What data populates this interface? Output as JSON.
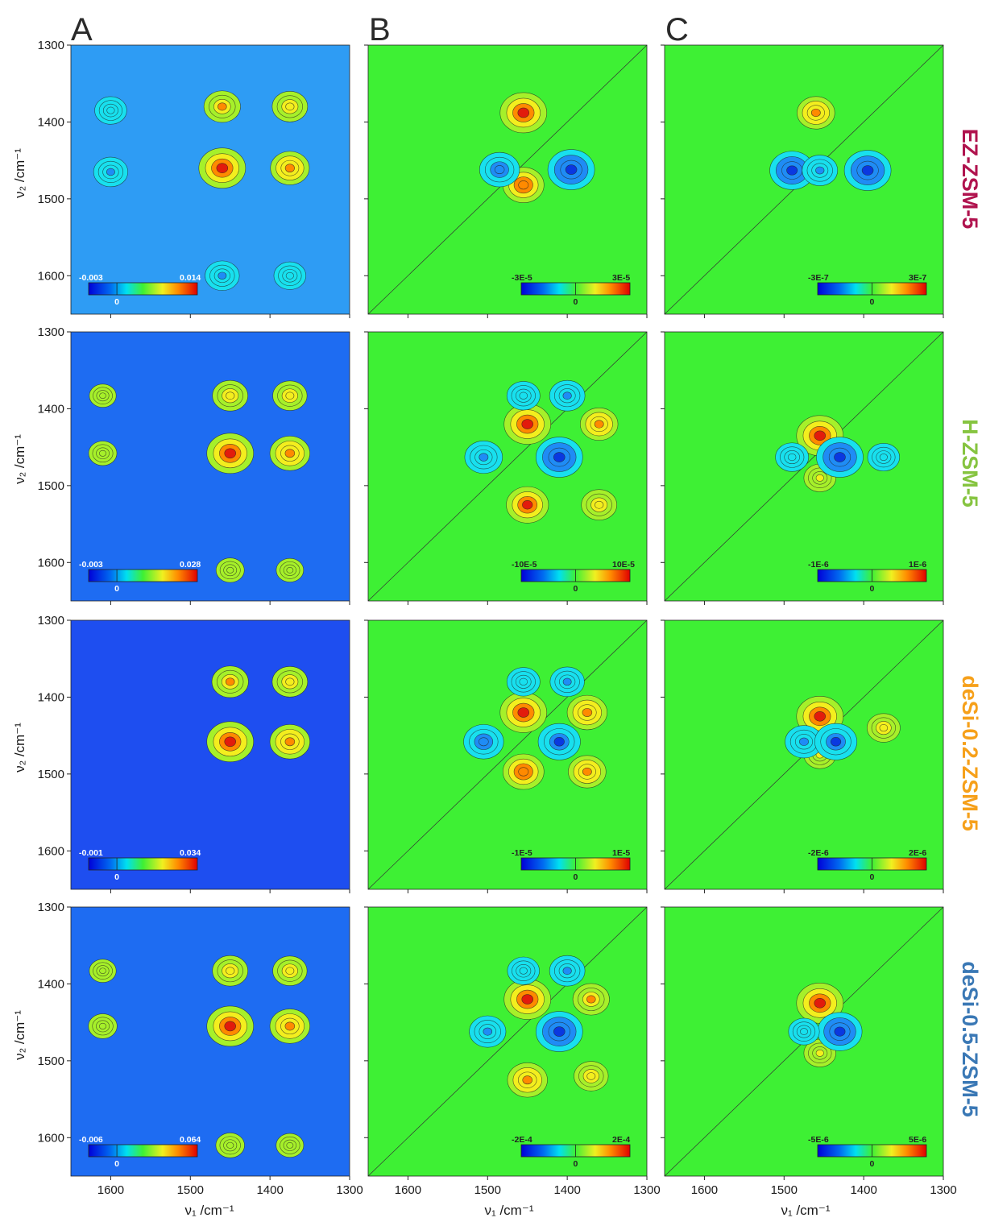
{
  "figure": {
    "column_letters": [
      "A",
      "B",
      "C"
    ],
    "x_axis_label": "ν₁ /cm⁻¹",
    "y_axis_label": "ν₂ /cm⁻¹",
    "axis_ticks": [
      "1600",
      "1500",
      "1400",
      "1300"
    ],
    "y_axis_ticks": [
      "1300",
      "1400",
      "1500",
      "1600"
    ]
  },
  "colors": {
    "EZ-ZSM-5": "#b0134e",
    "H-ZSM-5": "#86c440",
    "deSi-0.2-ZSM-5": "#f6a01a",
    "deSi-0.5-ZSM-5": "#3a78b5"
  },
  "chart_data": [
    {
      "type": "heatmap",
      "row": "EZ-ZSM-5",
      "column": "A",
      "colorbar": [
        "-0.003",
        "0",
        "0.014"
      ],
      "xlim": [
        1650,
        1300
      ],
      "ylim": [
        1300,
        1650
      ],
      "background": "#2e9cf4",
      "peaks": [
        [
          1460,
          1380,
          0.55
        ],
        [
          1460,
          1460,
          1.0
        ],
        [
          1375,
          1380,
          0.5
        ],
        [
          1375,
          1460,
          0.65
        ],
        [
          1600,
          1385,
          -0.35
        ],
        [
          1600,
          1465,
          -0.45
        ],
        [
          1460,
          1600,
          -0.45
        ],
        [
          1375,
          1600,
          -0.35
        ]
      ]
    },
    {
      "type": "heatmap",
      "row": "EZ-ZSM-5",
      "column": "B",
      "colorbar": [
        "-3E-5",
        "0",
        "3E-5"
      ],
      "xlim": [
        1650,
        1300
      ],
      "ylim": [
        1300,
        1650
      ],
      "background": "#3ef034",
      "peaks": [
        [
          1455,
          1388,
          1.0
        ],
        [
          1455,
          1482,
          0.75
        ],
        [
          1485,
          1462,
          -0.7
        ],
        [
          1395,
          1462,
          -1.0
        ]
      ]
    },
    {
      "type": "heatmap",
      "row": "EZ-ZSM-5",
      "column": "C",
      "colorbar": [
        "-3E-7",
        "0",
        "3E-7"
      ],
      "xlim": [
        1650,
        1300
      ],
      "ylim": [
        1300,
        1650
      ],
      "background": "#3ef034",
      "peaks": [
        [
          1460,
          1388,
          0.6
        ],
        [
          1490,
          1463,
          -0.9
        ],
        [
          1395,
          1463,
          -1.0
        ],
        [
          1455,
          1463,
          -0.5
        ]
      ]
    },
    {
      "type": "heatmap",
      "row": "H-ZSM-5",
      "column": "A",
      "colorbar": [
        "-0.003",
        "0",
        "0.028"
      ],
      "xlim": [
        1650,
        1300
      ],
      "ylim": [
        1300,
        1650
      ],
      "background": "#1e6cf2",
      "peaks": [
        [
          1450,
          1383,
          0.5
        ],
        [
          1450,
          1458,
          1.0
        ],
        [
          1375,
          1383,
          0.45
        ],
        [
          1375,
          1458,
          0.7
        ],
        [
          1610,
          1383,
          0.12
        ],
        [
          1610,
          1458,
          0.18
        ],
        [
          1450,
          1610,
          0.18
        ],
        [
          1375,
          1610,
          0.14
        ]
      ]
    },
    {
      "type": "heatmap",
      "row": "H-ZSM-5",
      "column": "B",
      "colorbar": [
        "-10E-5",
        "0",
        "10E-5"
      ],
      "xlim": [
        1650,
        1300
      ],
      "ylim": [
        1300,
        1650
      ],
      "background": "#3ef034",
      "peaks": [
        [
          1450,
          1420,
          1.0
        ],
        [
          1450,
          1525,
          0.8
        ],
        [
          1360,
          1420,
          0.6
        ],
        [
          1360,
          1525,
          0.5
        ],
        [
          1505,
          1463,
          -0.6
        ],
        [
          1410,
          1463,
          -1.0
        ],
        [
          1455,
          1383,
          -0.4
        ],
        [
          1400,
          1383,
          -0.5
        ]
      ]
    },
    {
      "type": "heatmap",
      "row": "H-ZSM-5",
      "column": "C",
      "colorbar": [
        "-1E-6",
        "0",
        "1E-6"
      ],
      "xlim": [
        1650,
        1300
      ],
      "ylim": [
        1300,
        1650
      ],
      "background": "#3ef034",
      "peaks": [
        [
          1455,
          1435,
          1.0
        ],
        [
          1455,
          1490,
          0.35
        ],
        [
          1430,
          1463,
          -1.0
        ],
        [
          1490,
          1463,
          -0.4
        ],
        [
          1375,
          1463,
          -0.35
        ]
      ]
    },
    {
      "type": "heatmap",
      "row": "deSi-0.2-ZSM-5",
      "column": "A",
      "colorbar": [
        "-0.001",
        "0",
        "0.034"
      ],
      "xlim": [
        1650,
        1300
      ],
      "ylim": [
        1300,
        1650
      ],
      "background": "#1e4ef0",
      "peaks": [
        [
          1450,
          1380,
          0.55
        ],
        [
          1450,
          1458,
          1.0
        ],
        [
          1375,
          1380,
          0.5
        ],
        [
          1375,
          1458,
          0.7
        ]
      ]
    },
    {
      "type": "heatmap",
      "row": "deSi-0.2-ZSM-5",
      "column": "B",
      "colorbar": [
        "-1E-5",
        "0",
        "1E-5"
      ],
      "xlim": [
        1650,
        1300
      ],
      "ylim": [
        1300,
        1650
      ],
      "background": "#3ef034",
      "peaks": [
        [
          1455,
          1420,
          1.0
        ],
        [
          1455,
          1497,
          0.75
        ],
        [
          1375,
          1420,
          0.7
        ],
        [
          1375,
          1497,
          0.6
        ],
        [
          1505,
          1458,
          -0.7
        ],
        [
          1410,
          1458,
          -0.8
        ],
        [
          1455,
          1380,
          -0.4
        ],
        [
          1400,
          1380,
          -0.45
        ]
      ]
    },
    {
      "type": "heatmap",
      "row": "deSi-0.2-ZSM-5",
      "column": "C",
      "colorbar": [
        "-2E-6",
        "0",
        "2E-6"
      ],
      "xlim": [
        1650,
        1300
      ],
      "ylim": [
        1300,
        1650
      ],
      "background": "#3ef034",
      "peaks": [
        [
          1455,
          1425,
          1.0
        ],
        [
          1375,
          1440,
          0.4
        ],
        [
          1455,
          1475,
          0.35
        ],
        [
          1475,
          1458,
          -0.6
        ],
        [
          1435,
          1458,
          -0.8
        ]
      ]
    },
    {
      "type": "heatmap",
      "row": "deSi-0.5-ZSM-5",
      "column": "A",
      "colorbar": [
        "-0.006",
        "0",
        "0.064"
      ],
      "xlim": [
        1650,
        1300
      ],
      "ylim": [
        1300,
        1650
      ],
      "background": "#1e6cf2",
      "peaks": [
        [
          1450,
          1383,
          0.5
        ],
        [
          1450,
          1455,
          1.0
        ],
        [
          1375,
          1383,
          0.45
        ],
        [
          1375,
          1455,
          0.7
        ],
        [
          1610,
          1383,
          0.12
        ],
        [
          1610,
          1455,
          0.2
        ],
        [
          1450,
          1610,
          0.2
        ],
        [
          1375,
          1610,
          0.15
        ]
      ]
    },
    {
      "type": "heatmap",
      "row": "deSi-0.5-ZSM-5",
      "column": "B",
      "colorbar": [
        "-2E-4",
        "0",
        "2E-4"
      ],
      "xlim": [
        1650,
        1300
      ],
      "ylim": [
        1300,
        1650
      ],
      "background": "#3ef034",
      "peaks": [
        [
          1450,
          1420,
          1.0
        ],
        [
          1450,
          1525,
          0.7
        ],
        [
          1370,
          1420,
          0.55
        ],
        [
          1370,
          1520,
          0.45
        ],
        [
          1500,
          1462,
          -0.55
        ],
        [
          1410,
          1462,
          -1.0
        ],
        [
          1455,
          1383,
          -0.35
        ],
        [
          1400,
          1383,
          -0.5
        ]
      ]
    },
    {
      "type": "heatmap",
      "row": "deSi-0.5-ZSM-5",
      "column": "C",
      "colorbar": [
        "-5E-6",
        "0",
        "5E-6"
      ],
      "xlim": [
        1650,
        1300
      ],
      "ylim": [
        1300,
        1650
      ],
      "background": "#3ef034",
      "peaks": [
        [
          1455,
          1425,
          1.0
        ],
        [
          1455,
          1490,
          0.35
        ],
        [
          1430,
          1462,
          -0.9
        ],
        [
          1475,
          1462,
          -0.3
        ]
      ]
    }
  ]
}
